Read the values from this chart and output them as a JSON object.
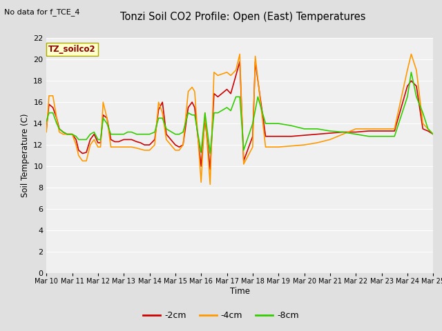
{
  "title": "Tonzi Soil CO2 Profile: Open (East) Temperatures",
  "no_data_label": "No data for f_TCE_4",
  "site_label": "TZ_soilco2",
  "xlabel": "Time",
  "ylabel": "Soil Temperature (C)",
  "ylim": [
    0,
    22
  ],
  "yticks": [
    0,
    2,
    4,
    6,
    8,
    10,
    12,
    14,
    16,
    18,
    20,
    22
  ],
  "fig_bg_color": "#e0e0e0",
  "plot_bg_color": "#f0f0f0",
  "xtick_labels": [
    "Mar 10",
    "Mar 11",
    "Mar 12",
    "Mar 13",
    "Mar 14",
    "Mar 15",
    "Mar 16",
    "Mar 17",
    "Mar 18",
    "Mar 19",
    "Mar 20",
    "Mar 21",
    "Mar 22",
    "Mar 23",
    "Mar 24",
    "Mar 25"
  ],
  "series": {
    "-2cm": {
      "color": "#cc0000",
      "linewidth": 1.2,
      "x": [
        10.0,
        10.1,
        10.25,
        10.4,
        10.5,
        10.65,
        10.8,
        11.0,
        11.15,
        11.25,
        11.4,
        11.55,
        11.7,
        11.85,
        12.0,
        12.1,
        12.2,
        12.35,
        12.5,
        12.65,
        12.8,
        13.0,
        13.15,
        13.3,
        13.5,
        13.65,
        13.8,
        14.0,
        14.2,
        14.35,
        14.5,
        14.65,
        15.0,
        15.15,
        15.3,
        15.5,
        15.65,
        15.75,
        16.0,
        16.15,
        16.35,
        16.5,
        16.65,
        17.0,
        17.15,
        17.35,
        17.5,
        17.65,
        18.0,
        18.1,
        18.5,
        19.0,
        19.5,
        20.0,
        20.5,
        21.0,
        21.5,
        22.0,
        22.5,
        23.0,
        23.5,
        24.0,
        24.15,
        24.35,
        24.6,
        24.8,
        25.0
      ],
      "y": [
        13.5,
        15.8,
        15.5,
        14.5,
        13.5,
        13.2,
        13.0,
        13.0,
        12.5,
        11.5,
        11.2,
        11.3,
        12.5,
        13.0,
        12.2,
        12.2,
        14.8,
        14.5,
        12.5,
        12.3,
        12.3,
        12.5,
        12.5,
        12.5,
        12.3,
        12.2,
        12.0,
        12.0,
        12.5,
        15.3,
        16.0,
        13.0,
        12.0,
        11.8,
        12.0,
        15.5,
        16.0,
        15.5,
        10.0,
        14.5,
        9.7,
        16.8,
        16.5,
        17.2,
        16.8,
        18.5,
        19.8,
        10.5,
        12.8,
        19.8,
        12.8,
        12.8,
        12.8,
        12.9,
        13.0,
        13.1,
        13.2,
        13.2,
        13.3,
        13.3,
        13.3,
        17.5,
        18.0,
        17.5,
        13.5,
        13.3,
        13.0
      ]
    },
    "-4cm": {
      "color": "#ff9900",
      "linewidth": 1.2,
      "x": [
        10.0,
        10.1,
        10.25,
        10.4,
        10.5,
        10.65,
        10.8,
        11.0,
        11.15,
        11.25,
        11.4,
        11.55,
        11.7,
        11.85,
        12.0,
        12.1,
        12.2,
        12.35,
        12.5,
        12.65,
        12.8,
        13.0,
        13.15,
        13.3,
        13.5,
        13.65,
        13.8,
        14.0,
        14.2,
        14.35,
        14.5,
        14.65,
        15.0,
        15.15,
        15.3,
        15.5,
        15.65,
        15.75,
        16.0,
        16.15,
        16.35,
        16.5,
        16.65,
        17.0,
        17.15,
        17.35,
        17.5,
        17.65,
        18.0,
        18.1,
        18.5,
        19.0,
        19.5,
        20.0,
        20.5,
        21.0,
        21.5,
        22.0,
        22.5,
        23.0,
        23.5,
        24.0,
        24.15,
        24.35,
        24.6,
        24.8,
        25.0
      ],
      "y": [
        13.2,
        16.6,
        16.6,
        14.5,
        13.2,
        13.0,
        13.0,
        13.0,
        12.0,
        11.0,
        10.5,
        10.5,
        12.0,
        12.5,
        11.8,
        11.8,
        16.0,
        14.5,
        11.8,
        11.8,
        11.8,
        11.8,
        11.8,
        11.8,
        11.7,
        11.6,
        11.5,
        11.5,
        12.0,
        16.0,
        15.0,
        12.5,
        11.5,
        11.5,
        12.0,
        17.0,
        17.4,
        17.0,
        8.5,
        15.0,
        8.3,
        18.8,
        18.5,
        18.8,
        18.5,
        19.0,
        20.5,
        10.2,
        11.8,
        20.3,
        11.8,
        11.8,
        11.9,
        12.0,
        12.2,
        12.5,
        13.0,
        13.5,
        13.5,
        13.5,
        13.5,
        19.0,
        20.5,
        19.0,
        14.0,
        13.5,
        13.0
      ]
    },
    "-8cm": {
      "color": "#33cc00",
      "linewidth": 1.2,
      "x": [
        10.0,
        10.1,
        10.25,
        10.4,
        10.5,
        10.65,
        10.8,
        11.0,
        11.15,
        11.25,
        11.4,
        11.55,
        11.7,
        11.85,
        12.0,
        12.1,
        12.2,
        12.35,
        12.5,
        12.65,
        12.8,
        13.0,
        13.15,
        13.3,
        13.5,
        13.65,
        13.8,
        14.0,
        14.2,
        14.35,
        14.5,
        14.65,
        15.0,
        15.15,
        15.3,
        15.5,
        15.65,
        15.75,
        16.0,
        16.15,
        16.35,
        16.5,
        16.65,
        17.0,
        17.15,
        17.35,
        17.5,
        17.65,
        18.0,
        18.2,
        18.5,
        19.0,
        19.5,
        20.0,
        20.5,
        21.0,
        21.5,
        22.0,
        22.5,
        23.0,
        23.5,
        24.0,
        24.15,
        24.35,
        24.6,
        24.8,
        25.0
      ],
      "y": [
        14.2,
        15.0,
        15.0,
        14.0,
        13.5,
        13.2,
        13.0,
        13.0,
        12.8,
        12.5,
        12.5,
        12.5,
        13.0,
        13.2,
        12.5,
        12.5,
        14.5,
        14.0,
        13.0,
        13.0,
        13.0,
        13.0,
        13.2,
        13.2,
        13.0,
        13.0,
        13.0,
        13.0,
        13.2,
        14.5,
        14.5,
        13.5,
        13.0,
        13.0,
        13.2,
        15.0,
        14.8,
        14.8,
        11.3,
        15.0,
        11.2,
        15.0,
        15.0,
        15.5,
        15.2,
        16.5,
        16.5,
        11.5,
        14.0,
        16.5,
        14.0,
        14.0,
        13.8,
        13.5,
        13.5,
        13.3,
        13.2,
        13.0,
        12.8,
        12.8,
        12.8,
        16.5,
        18.8,
        16.5,
        15.0,
        13.5,
        13.0
      ]
    }
  },
  "legend_items": [
    {
      "label": "-2cm",
      "color": "#cc0000"
    },
    {
      "label": "-4cm",
      "color": "#ff9900"
    },
    {
      "label": "-8cm",
      "color": "#33cc00"
    }
  ]
}
